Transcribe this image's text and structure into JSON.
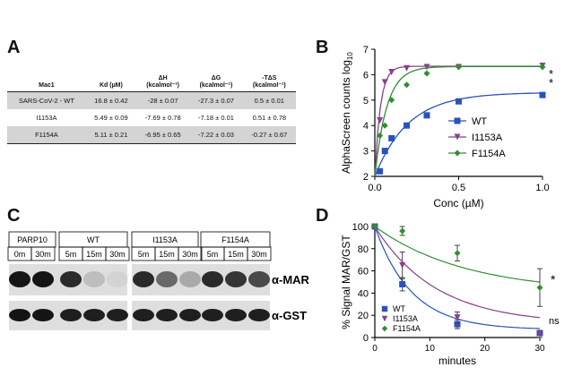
{
  "panels": {
    "a": "A",
    "b": "B",
    "c": "C",
    "d": "D"
  },
  "tableA": {
    "headers": [
      "Mac1",
      "Kd (µM)",
      "ΔH",
      "ΔG",
      "-TΔS"
    ],
    "header_units": [
      "",
      "",
      "(kcalmol⁻¹)",
      "(kcalmol⁻¹)",
      "(kcalmol⁻¹)"
    ],
    "rows": [
      [
        "SARS-CoV-2 - WT",
        "16.8 ± 0.42",
        "-28 ± 0.07",
        "-27.3 ± 0.07",
        "0.5 ± 0.01"
      ],
      [
        "I1153A",
        "5.49 ± 0.09",
        "-7.69 ± 0.78",
        "-7.18 ± 0.01",
        "0.51 ± 0.78"
      ],
      [
        "F1154A",
        "5.11 ± 0.21",
        "-6.95 ± 0.65",
        "-7.22 ± 0.03",
        "-0.27 ± 0.67"
      ]
    ]
  },
  "chart_data": [
    {
      "id": "B",
      "type": "scatter",
      "xlabel": "Conc (µM)",
      "ylabel": "AlphaScreen counts log",
      "ylabel_sub": "10",
      "xlim": [
        0,
        1
      ],
      "ylim": [
        2,
        7
      ],
      "xticks": [
        "0.0",
        "0.5",
        "1.0"
      ],
      "yticks": [
        "2",
        "3",
        "4",
        "5",
        "6",
        "7"
      ],
      "legend_position": "right",
      "annotations": [
        "*",
        "*"
      ],
      "series": [
        {
          "name": "WT",
          "color": "#2a52be",
          "marker": "square",
          "x": [
            0.0,
            0.03,
            0.06,
            0.1,
            0.19,
            0.31,
            0.5,
            1.0
          ],
          "y": [
            2.0,
            2.2,
            3.0,
            3.5,
            4.0,
            4.4,
            4.95,
            5.2
          ]
        },
        {
          "name": "I1153A",
          "color": "#8b3f8b",
          "marker": "triangle-down",
          "x": [
            0.0,
            0.03,
            0.06,
            0.1,
            0.19,
            0.31,
            0.5,
            1.0
          ],
          "y": [
            2.0,
            4.2,
            5.7,
            6.1,
            6.25,
            6.3,
            6.3,
            6.35
          ]
        },
        {
          "name": "F1154A",
          "color": "#2f8f2f",
          "marker": "diamond",
          "x": [
            0.0,
            0.03,
            0.06,
            0.1,
            0.19,
            0.31,
            0.5,
            1.0
          ],
          "y": [
            2.0,
            3.6,
            4.0,
            5.0,
            5.6,
            6.05,
            6.3,
            6.3
          ]
        }
      ]
    },
    {
      "id": "D",
      "type": "scatter",
      "xlabel": "minutes",
      "ylabel": "% Signal MAR/GST",
      "xlim": [
        0,
        30
      ],
      "ylim": [
        0,
        100
      ],
      "xticks": [
        "0",
        "10",
        "20",
        "30"
      ],
      "yticks": [
        "0",
        "20",
        "40",
        "60",
        "80",
        "100"
      ],
      "legend_position": "bottom-left",
      "annotations": [
        "*",
        "ns"
      ],
      "series": [
        {
          "name": "WT",
          "color": "#2a52be",
          "marker": "square",
          "x": [
            0,
            5,
            15,
            30
          ],
          "y": [
            100,
            48,
            12,
            4
          ],
          "err": [
            0,
            6,
            4,
            2
          ]
        },
        {
          "name": "I1153A",
          "color": "#8b3f8b",
          "marker": "triangle-down",
          "x": [
            0,
            5,
            15,
            30
          ],
          "y": [
            100,
            65,
            18,
            3
          ],
          "err": [
            0,
            12,
            5,
            3
          ]
        },
        {
          "name": "F1154A",
          "color": "#2f8f2f",
          "marker": "diamond",
          "x": [
            0,
            5,
            15,
            30
          ],
          "y": [
            100,
            96,
            76,
            45
          ],
          "err": [
            0,
            4,
            7,
            17
          ]
        }
      ]
    }
  ],
  "blot": {
    "groups": [
      "PARP10",
      "WT",
      "I1153A",
      "F1154A"
    ],
    "times": [
      "0m",
      "30m",
      "5m",
      "15m",
      "30m",
      "5m",
      "15m",
      "30m",
      "5m",
      "15m",
      "30m"
    ],
    "labels": [
      "α-MAR",
      "α-GST"
    ],
    "mar_intensity": [
      0.95,
      0.95,
      0.85,
      0.15,
      0.05,
      0.85,
      0.55,
      0.25,
      0.85,
      0.8,
      0.7
    ],
    "gst_intensity": [
      0.95,
      0.95,
      0.9,
      0.9,
      0.9,
      0.9,
      0.9,
      0.9,
      0.9,
      0.9,
      0.9
    ]
  }
}
